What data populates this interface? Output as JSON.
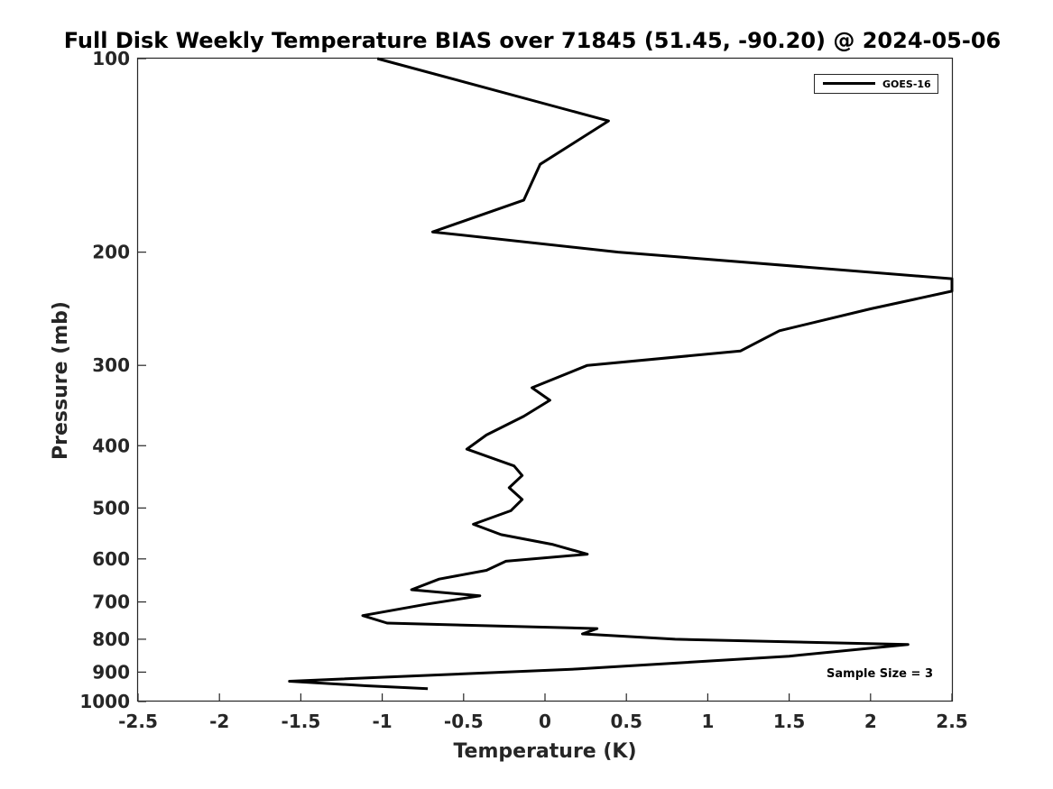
{
  "chart_data": {
    "type": "line",
    "title": "Full Disk Weekly Temperature BIAS over 71845 (51.45, -90.20) @ 2024-05-06",
    "xlabel": "Temperature (K)",
    "ylabel": "Pressure (mb)",
    "xlim": [
      -2.5,
      2.5
    ],
    "ylim": [
      100,
      1000
    ],
    "y_scale": "log",
    "y_reversed": true,
    "x_ticks": [
      "-2.5",
      "-2",
      "-1.5",
      "-1",
      "-0.5",
      "0",
      "0.5",
      "1",
      "1.5",
      "2",
      "2.5"
    ],
    "y_ticks": [
      "100",
      "200",
      "300",
      "400",
      "500",
      "600",
      "700",
      "800",
      "900",
      "1000"
    ],
    "grid": false,
    "legend_position": "top-right",
    "series": [
      {
        "name": "GOES-16",
        "color": "#000000",
        "x": [
          -1.03,
          0.39,
          -0.03,
          -0.13,
          -0.69,
          0.45,
          2.5,
          2.5,
          2.0,
          1.44,
          1.2,
          0.26,
          -0.08,
          0.03,
          -0.13,
          -0.36,
          -0.48,
          -0.19,
          -0.14,
          -0.22,
          -0.14,
          -0.21,
          -0.44,
          -0.27,
          0.05,
          0.26,
          -0.24,
          -0.36,
          -0.65,
          -0.82,
          -0.4,
          -0.72,
          -1.12,
          -0.97,
          0.32,
          0.23,
          0.8,
          2.23,
          1.5,
          0.2,
          -1.57,
          -1.1,
          -0.72
        ],
        "y": [
          100,
          125,
          146,
          166,
          186,
          200,
          220,
          230,
          245,
          265,
          285,
          300,
          325,
          340,
          360,
          385,
          405,
          430,
          445,
          465,
          485,
          505,
          530,
          550,
          570,
          590,
          605,
          625,
          645,
          670,
          685,
          705,
          735,
          755,
          770,
          785,
          800,
          815,
          850,
          890,
          930,
          945,
          955
        ]
      }
    ],
    "annotation": "Sample Size = 3"
  }
}
